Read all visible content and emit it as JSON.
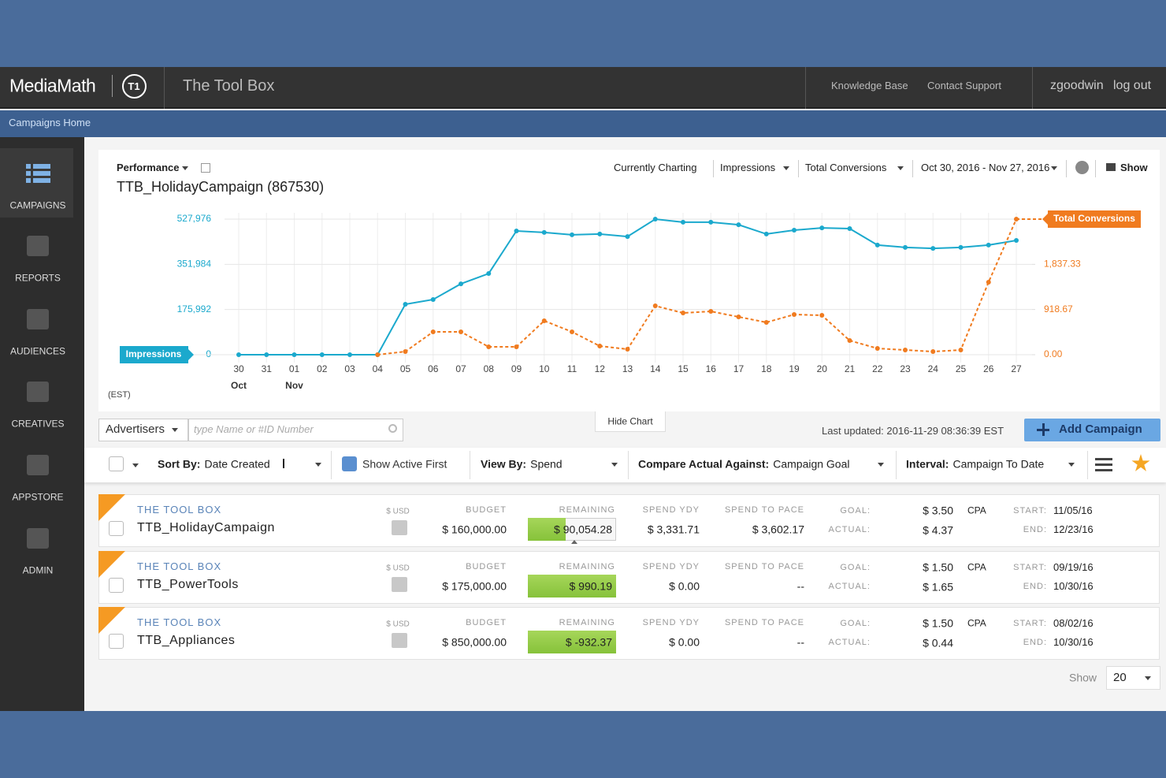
{
  "header": {
    "brand": "MediaMath",
    "logo": "T1",
    "app_title": "The Tool Box",
    "links": [
      "Knowledge Base",
      "Contact Support"
    ],
    "user": "zgoodwin",
    "logout": "log out"
  },
  "breadcrumb": "Campaigns Home",
  "sidebar": [
    "CAMPAIGNS",
    "REPORTS",
    "AUDIENCES",
    "CREATIVES",
    "APPSTORE",
    "ADMIN"
  ],
  "chart_panel": {
    "menu": "Performance",
    "title": "TTB_HolidayCampaign (867530)",
    "charting_label": "Currently Charting",
    "metric_1": "Impressions",
    "metric_2": "Total Conversions",
    "date_range": "Oct 30, 2016 - Nov 27, 2016",
    "show": "Show",
    "timezone": "(EST)",
    "hide_chart": "Hide Chart"
  },
  "chart_data": {
    "type": "line",
    "categories": [
      "30",
      "31",
      "01",
      "02",
      "03",
      "04",
      "05",
      "06",
      "07",
      "08",
      "09",
      "10",
      "11",
      "12",
      "13",
      "14",
      "15",
      "16",
      "17",
      "18",
      "19",
      "20",
      "21",
      "22",
      "23",
      "24",
      "25",
      "26",
      "27"
    ],
    "month_labels": [
      "Oct",
      null,
      "Nov",
      null,
      null,
      null,
      null,
      null,
      null,
      null,
      null,
      null,
      null,
      null,
      null,
      null,
      null,
      null,
      null,
      null,
      null,
      null,
      null,
      null,
      null,
      null,
      null,
      null,
      null
    ],
    "series": [
      {
        "name": "Impressions",
        "color": "#1ba9cd",
        "values": [
          0,
          0,
          0,
          0,
          0,
          0,
          196500,
          215000,
          276000,
          316000,
          482000,
          476000,
          467000,
          470000,
          460000,
          528000,
          516000,
          516000,
          506000,
          470000,
          485000,
          494000,
          491000,
          427000,
          418000,
          414000,
          418000,
          427000,
          445000
        ]
      },
      {
        "name": "Total Conversions",
        "color": "#f07b1f",
        "axis": "y2",
        "values": [
          null,
          null,
          null,
          null,
          null,
          0,
          64,
          465,
          465,
          160,
          160,
          689,
          465,
          176,
          112,
          993,
          849,
          881,
          769,
          657,
          817,
          801,
          288,
          128,
          96,
          64,
          96,
          1474,
          2756
        ]
      }
    ],
    "ylim": [
      0,
      527976
    ],
    "yticks": [
      0,
      {
        "value": 175992,
        "label": "175,992"
      },
      {
        "value": 351984,
        "label": "351,984"
      },
      {
        "value": 527976,
        "label": "527,976"
      }
    ],
    "y2lim": [
      0,
      2756
    ],
    "y2ticks": [
      {
        "value": 0,
        "label": "0.00"
      },
      {
        "value": 918.67,
        "label": "918.67"
      },
      {
        "value": 1837.33,
        "label": "1,837.33"
      }
    ],
    "grid": true
  },
  "toolbar": {
    "advertisers": "Advertisers",
    "search_placeholder": "type Name or #ID Number",
    "last_updated": "Last updated: 2016-11-29 08:36:39 EST",
    "add_campaign": "Add Campaign"
  },
  "filters": {
    "sort_label": "Sort By:",
    "sort_value": "Date Created",
    "active_first": "Show Active First",
    "view_label": "View By:",
    "view_value": "Spend",
    "compare_label": "Compare Actual Against:",
    "compare_value": "Campaign Goal",
    "interval_label": "Interval:",
    "interval_value": "Campaign To Date"
  },
  "columns": {
    "currency": "$ USD",
    "budget": "BUDGET",
    "remaining": "REMAINING",
    "spend_ydy": "SPEND YDY",
    "spend_to_pace": "SPEND TO PACE",
    "goal": "GOAL:",
    "actual": "ACTUAL:",
    "start": "START:",
    "end": "END:"
  },
  "campaigns": [
    {
      "advertiser": "THE TOOL BOX",
      "name": "TTB_HolidayCampaign",
      "budget": "$ 160,000.00",
      "remaining": "$ 90,054.28",
      "spend_ydy": "$ 3,331.71",
      "spend_to_pace": "$ 3,602.17",
      "goal": "$ 3.50",
      "goal_type": "CPA",
      "actual": "$ 4.37",
      "start": "11/05/16",
      "end": "12/23/16"
    },
    {
      "advertiser": "THE TOOL BOX",
      "name": "TTB_PowerTools",
      "budget": "$ 175,000.00",
      "remaining": "$ 990.19",
      "spend_ydy": "$ 0.00",
      "spend_to_pace": "--",
      "goal": "$ 1.50",
      "goal_type": "CPA",
      "actual": "$ 1.65",
      "start": "09/19/16",
      "end": "10/30/16"
    },
    {
      "advertiser": "THE TOOL BOX",
      "name": "TTB_Appliances",
      "budget": "$ 850,000.00",
      "remaining": "$ -932.37",
      "spend_ydy": "$ 0.00",
      "spend_to_pace": "--",
      "goal": "$ 1.50",
      "goal_type": "CPA",
      "actual": "$ 0.44",
      "start": "08/02/16",
      "end": "10/30/16"
    }
  ],
  "pagination": {
    "label": "Show",
    "value": "20"
  }
}
